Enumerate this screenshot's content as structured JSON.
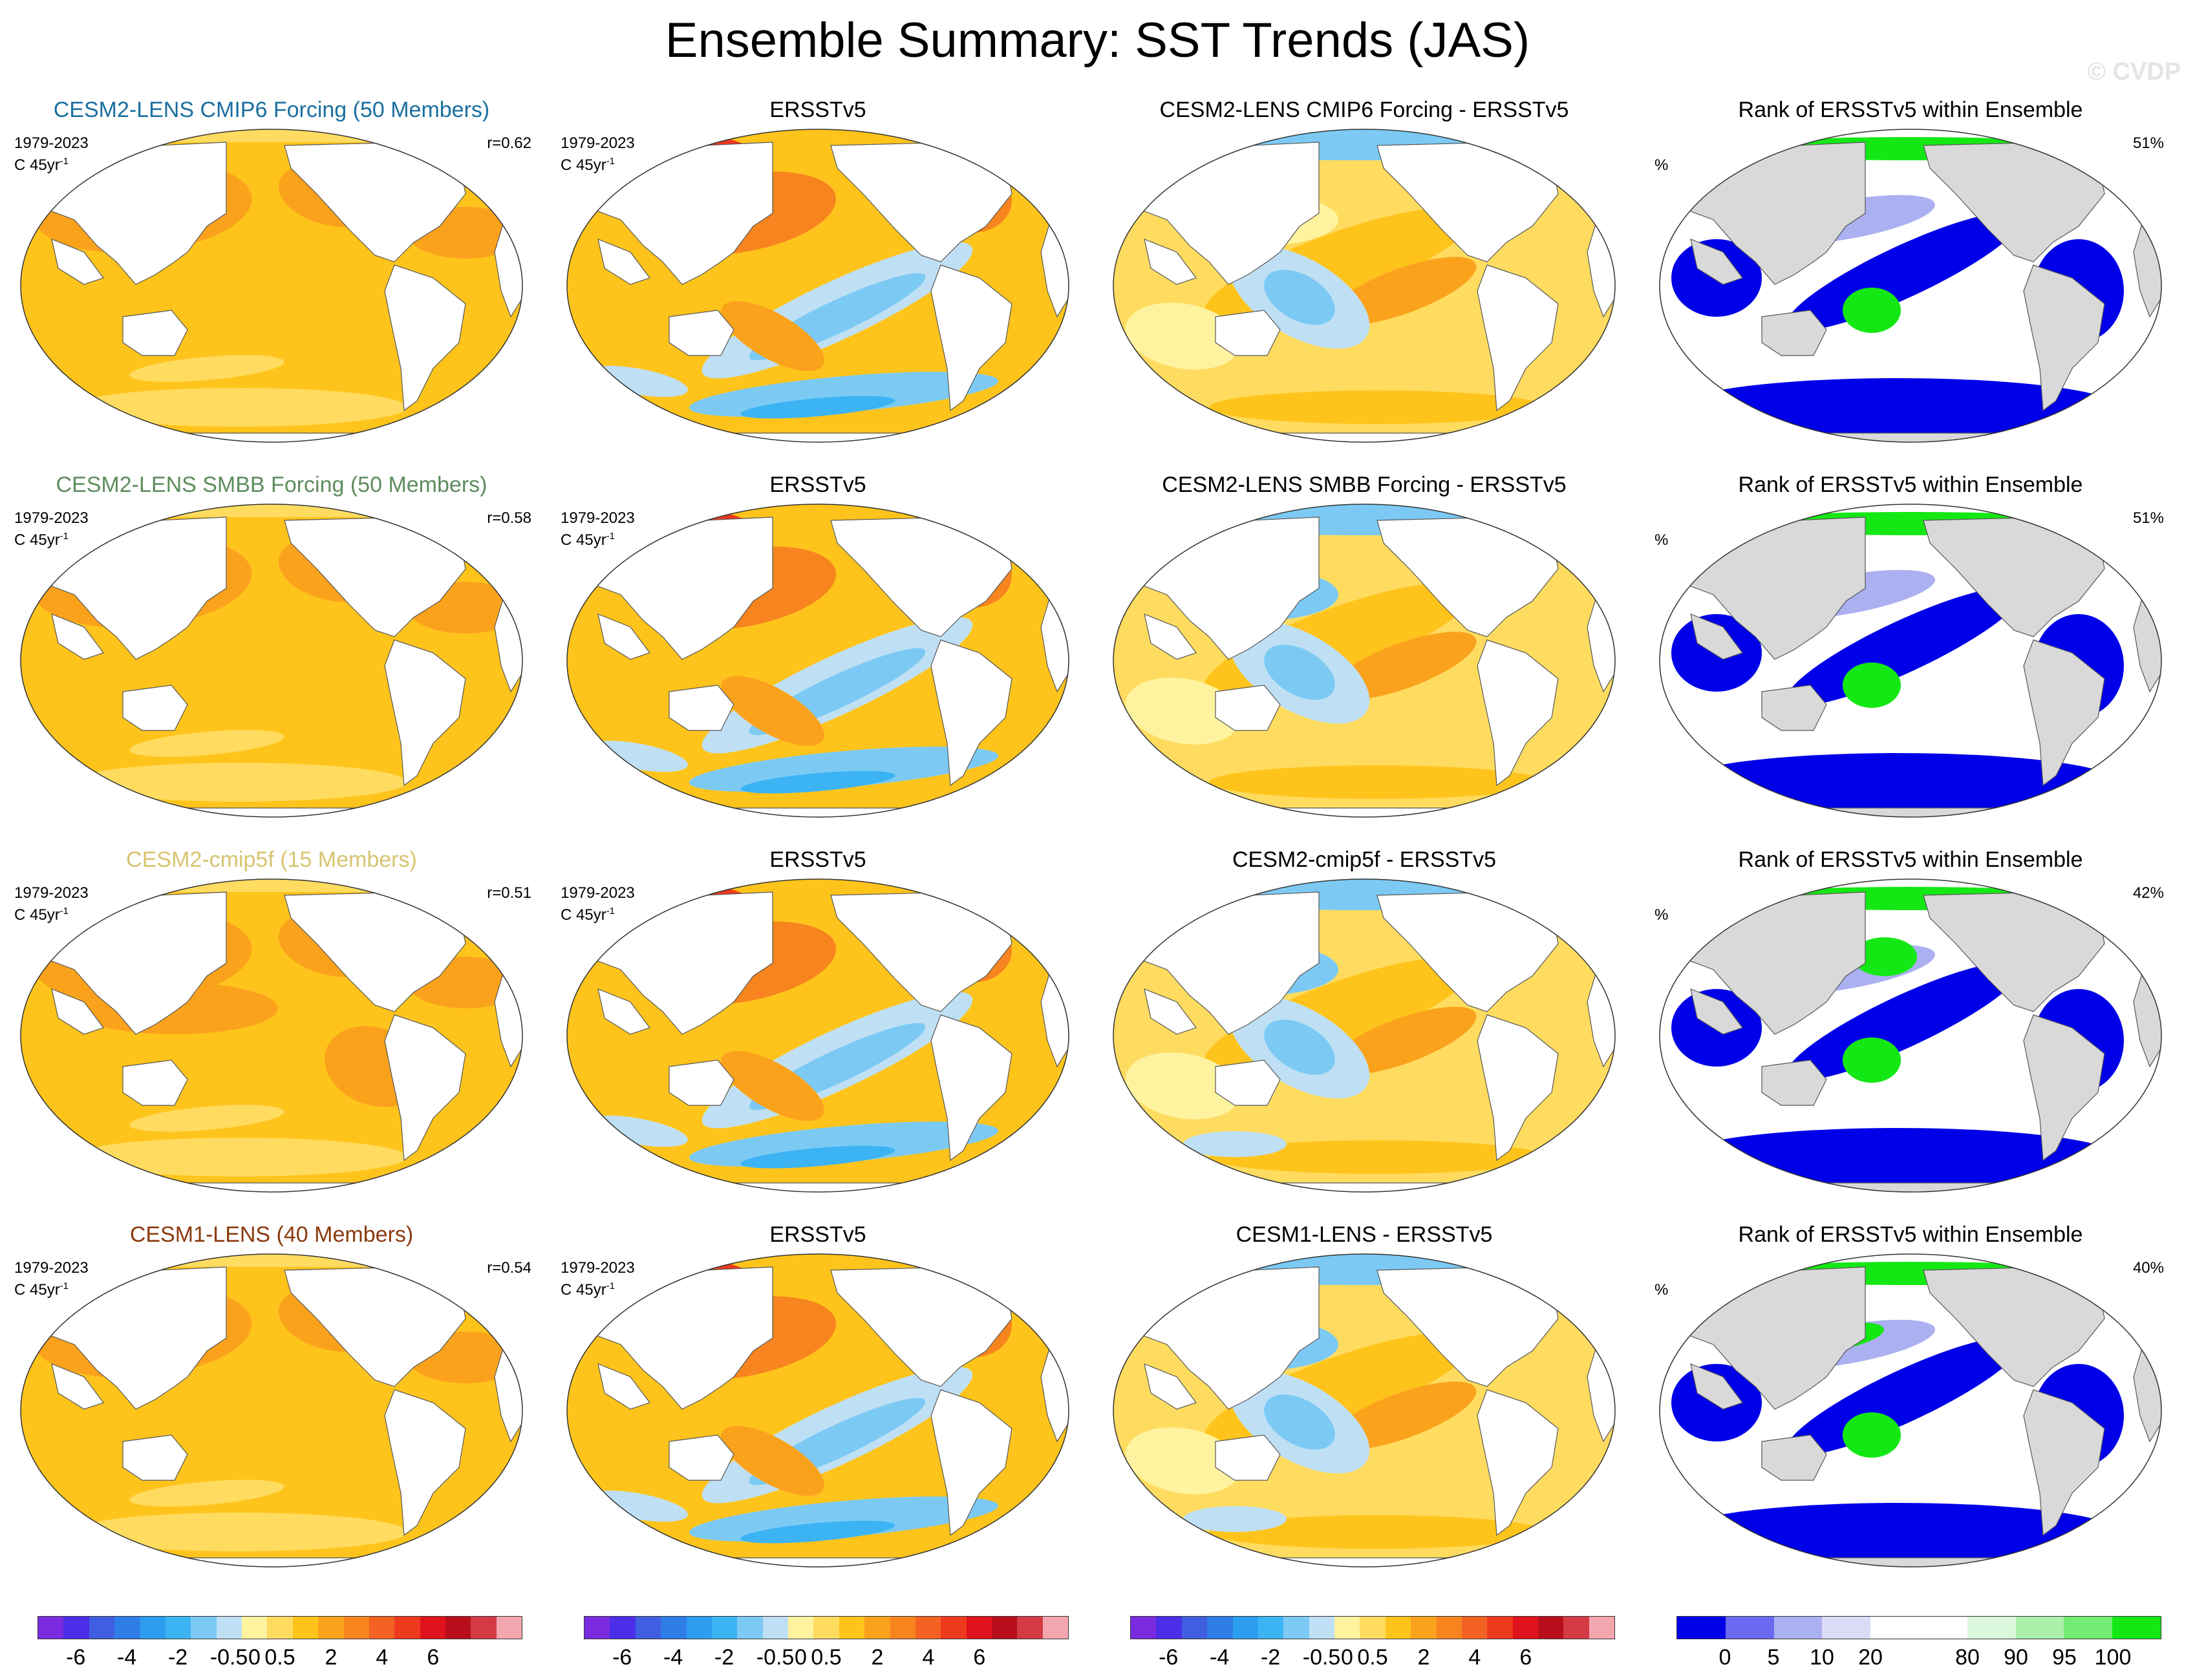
{
  "title": "Ensemble Summary: SST Trends (JAS)",
  "watermark": "© CVDP",
  "colors": {
    "title_cmip6": "#1a6fa0",
    "title_smbb": "#5e8c5e",
    "title_cmip5f": "#d8c470",
    "title_cesm1": "#8b3a0e",
    "land": "#ffffff",
    "land_rank": "#d9d9d9",
    "coast": "#555555"
  },
  "rows": [
    {
      "model": {
        "title": "CESM2-LENS CMIP6 Forcing (50 Members)",
        "title_color": "#1a6fa0",
        "period": "1979-2023",
        "units_prefix": "C 45yr",
        "units_exp": "-1",
        "corr": "r=0.62",
        "pattern": "model_a"
      },
      "obs": {
        "title": "ERSSTv5",
        "period": "1979-2023",
        "units_prefix": "C 45yr",
        "units_exp": "-1",
        "pattern": "obs"
      },
      "diff": {
        "title": "CESM2-LENS CMIP6 Forcing - ERSSTv5",
        "pattern": "diff_a"
      },
      "rank": {
        "title": "Rank of ERSSTv5 within Ensemble",
        "unit": "%",
        "pct": "51%",
        "pattern": "rank_a"
      }
    },
    {
      "model": {
        "title": "CESM2-LENS SMBB Forcing (50 Members)",
        "title_color": "#5e8c5e",
        "period": "1979-2023",
        "units_prefix": "C 45yr",
        "units_exp": "-1",
        "corr": "r=0.58",
        "pattern": "model_a"
      },
      "obs": {
        "title": "ERSSTv5",
        "period": "1979-2023",
        "units_prefix": "C 45yr",
        "units_exp": "-1",
        "pattern": "obs"
      },
      "diff": {
        "title": "CESM2-LENS SMBB Forcing - ERSSTv5",
        "pattern": "diff_b"
      },
      "rank": {
        "title": "Rank of ERSSTv5 within Ensemble",
        "unit": "%",
        "pct": "51%",
        "pattern": "rank_b"
      }
    },
    {
      "model": {
        "title": "CESM2-cmip5f (15 Members)",
        "title_color": "#d8c470",
        "period": "1979-2023",
        "units_prefix": "C 45yr",
        "units_exp": "-1",
        "corr": "r=0.51",
        "pattern": "model_b"
      },
      "obs": {
        "title": "ERSSTv5",
        "period": "1979-2023",
        "units_prefix": "C 45yr",
        "units_exp": "-1",
        "pattern": "obs"
      },
      "diff": {
        "title": "CESM2-cmip5f - ERSSTv5",
        "pattern": "diff_c"
      },
      "rank": {
        "title": "Rank of ERSSTv5 within Ensemble",
        "unit": "%",
        "pct": "42%",
        "pattern": "rank_c"
      }
    },
    {
      "model": {
        "title": "CESM1-LENS (40 Members)",
        "title_color": "#8b3a0e",
        "period": "1979-2023",
        "units_prefix": "C 45yr",
        "units_exp": "-1",
        "corr": "r=0.54",
        "pattern": "model_c"
      },
      "obs": {
        "title": "ERSSTv5",
        "period": "1979-2023",
        "units_prefix": "C 45yr",
        "units_exp": "-1",
        "pattern": "obs"
      },
      "diff": {
        "title": "CESM1-LENS - ERSSTv5",
        "pattern": "diff_d"
      },
      "rank": {
        "title": "Rank of ERSSTv5 within Ensemble",
        "unit": "%",
        "pct": "40%",
        "pattern": "rank_d"
      }
    }
  ],
  "chart_data": {
    "type": "heatmap",
    "title": "Ensemble Summary: SST Trends (JAS)",
    "projection": "robinson-like global map, Pacific-centred",
    "period": "1979-2023",
    "units": "C 45yr-1",
    "pattern_correlations": [
      {
        "model": "CESM2-LENS CMIP6 Forcing (50 Members)",
        "r": 0.62,
        "rank_pct": 51
      },
      {
        "model": "CESM2-LENS SMBB Forcing (50 Members)",
        "r": 0.58,
        "rank_pct": 51
      },
      {
        "model": "CESM2-cmip5f (15 Members)",
        "r": 0.51,
        "rank_pct": 42
      },
      {
        "model": "CESM1-LENS (40 Members)",
        "r": 0.54,
        "rank_pct": 40
      }
    ],
    "trend_colorbar": {
      "colors": [
        "#7a2be0",
        "#4a2ee8",
        "#3f5fe0",
        "#2f7ee8",
        "#2c9ef0",
        "#3cb4f4",
        "#7ccaf4",
        "#bfe0f4",
        "#fff3a0",
        "#ffdc60",
        "#ffc41c",
        "#fba21c",
        "#f7841e",
        "#f36222",
        "#ef3a1e",
        "#e0121c",
        "#b80e1c",
        "#d43a44",
        "#f4a6ae"
      ],
      "tick_labels": [
        "-6",
        "-4",
        "-2",
        "-0.5",
        "0",
        "0.5",
        "2",
        "4",
        "6"
      ],
      "tick_positions": [
        1.5,
        3.5,
        5.5,
        7.5,
        8.5,
        9.5,
        11.5,
        13.5,
        15.5
      ]
    },
    "rank_colorbar": {
      "colors": [
        "#0000e8",
        "#6a6af0",
        "#aab0f0",
        "#dcdcf6",
        "#ffffff",
        "#ffffff",
        "#dcf8dc",
        "#aaf0aa",
        "#72ec72",
        "#14e814"
      ],
      "tick_labels": [
        "0",
        "5",
        "10",
        "20",
        "80",
        "90",
        "95",
        "100"
      ],
      "tick_positions": [
        1,
        2,
        3,
        4,
        6,
        7,
        8,
        9
      ]
    }
  }
}
